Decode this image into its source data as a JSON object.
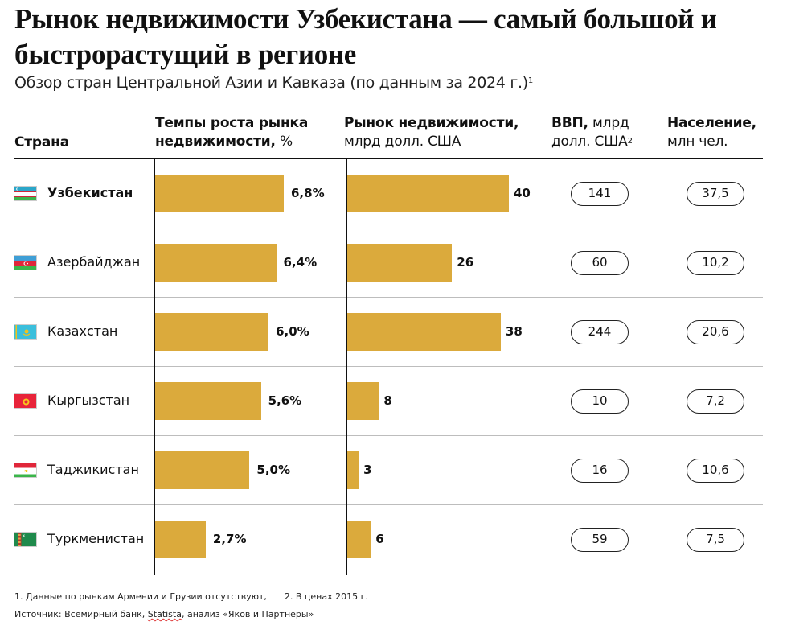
{
  "title": "Рынок недвижимости Узбекистана — самый большой и быстрорастущий в регионе",
  "subtitle": "Обзор стран Центральной Азии и Кавказа (по данным за 2024 г.)",
  "subtitle_sup": "1",
  "headers": {
    "country": "Страна",
    "growth_bold": "Темпы роста рынка недвижимости,",
    "growth_unit": "%",
    "market_bold": "Рынок недвижимости,",
    "market_unit": "млрд долл. США",
    "gdp_bold": "ВВП,",
    "gdp_unit_1": "млрд",
    "gdp_unit_2": "долл. США",
    "gdp_sup": "2",
    "pop_bold": "Население,",
    "pop_unit": "млн чел."
  },
  "colors": {
    "bar": "#dbaa3c",
    "rule": "#111111",
    "separator": "#bdbdbd"
  },
  "chart_data": {
    "type": "table",
    "title": "Рынок недвижимости Узбекистана — самый большой и быстрорастущий в регионе",
    "subtitle": "Обзор стран Центральной Азии и Кавказа (по данным за 2024 г.)",
    "columns": [
      "Страна",
      "Темпы роста рынка недвижимости, %",
      "Рынок недвижимости, млрд долл. США",
      "ВВП, млрд долл. США",
      "Население, млн чел."
    ],
    "rows": [
      {
        "country": "Узбекистан",
        "flag": "uzbekistan-flag",
        "highlight": true,
        "growth": 6.8,
        "growth_label": "6,8%",
        "market": 40,
        "market_label": "40",
        "gdp": "141",
        "population": "37,5"
      },
      {
        "country": "Азербайджан",
        "flag": "azerbaijan-flag",
        "highlight": false,
        "growth": 6.4,
        "growth_label": "6,4%",
        "market": 26,
        "market_label": "26",
        "gdp": "60",
        "population": "10,2"
      },
      {
        "country": "Казахстан",
        "flag": "kazakhstan-flag",
        "highlight": false,
        "growth": 6.0,
        "growth_label": "6,0%",
        "market": 38,
        "market_label": "38",
        "gdp": "244",
        "population": "20,6"
      },
      {
        "country": "Кыргызстан",
        "flag": "kyrgyzstan-flag",
        "highlight": false,
        "growth": 5.6,
        "growth_label": "5,6%",
        "market": 8,
        "market_label": "8",
        "gdp": "10",
        "population": "7,2"
      },
      {
        "country": "Таджикистан",
        "flag": "tajikistan-flag",
        "highlight": false,
        "growth": 5.0,
        "growth_label": "5,0%",
        "market": 3,
        "market_label": "3",
        "gdp": "16",
        "population": "10,6"
      },
      {
        "country": "Туркменистан",
        "flag": "turkmenistan-flag",
        "highlight": false,
        "growth": 2.7,
        "growth_label": "2,7%",
        "market": 6,
        "market_label": "6",
        "gdp": "59",
        "population": "7,5"
      }
    ],
    "growth_axis_max": 6.8,
    "market_axis_max": 40
  },
  "footnotes": {
    "note1": "1. Данные по рынкам Армении и Грузии отсутствуют,",
    "note2": "2. В ценах 2015 г.",
    "source_prefix": "Источник: Всемирный банк, ",
    "source_statista": "Statista",
    "source_suffix": ", анализ «Яков и Партнёры»"
  }
}
